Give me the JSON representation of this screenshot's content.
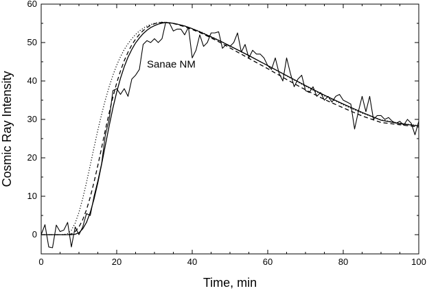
{
  "chart_data": {
    "type": "line",
    "title": "",
    "xlabel": "Time, min",
    "ylabel": "Cosmic Ray Intensity",
    "xlim": [
      0,
      100
    ],
    "ylim": [
      -5,
      60
    ],
    "xticks": [
      0,
      20,
      40,
      60,
      80,
      100
    ],
    "yticks": [
      0,
      10,
      20,
      30,
      40,
      50,
      60
    ],
    "grid": false,
    "legend": "none",
    "annotations": [
      {
        "text": "Sanae NM",
        "x": 28,
        "y": 43.5
      }
    ],
    "series": [
      {
        "style": "solid",
        "kind": "observed",
        "x": [
          0,
          1,
          2,
          3,
          4,
          5,
          6,
          7,
          8,
          9,
          10,
          11,
          12,
          13,
          14,
          15,
          16,
          17,
          18,
          19,
          20,
          21,
          22,
          23,
          24,
          25,
          26,
          27,
          28,
          29,
          30,
          31,
          32,
          33,
          34,
          35,
          36,
          37,
          38,
          39,
          40,
          41,
          42,
          43,
          44,
          45,
          46,
          47,
          48,
          49,
          50,
          51,
          52,
          53,
          54,
          55,
          56,
          57,
          58,
          59,
          60,
          61,
          62,
          63,
          64,
          65,
          66,
          67,
          68,
          69,
          70,
          71,
          72,
          73,
          74,
          75,
          76,
          77,
          78,
          79,
          80,
          81,
          82,
          83,
          84,
          85,
          86,
          87,
          88,
          89,
          90,
          91,
          92,
          93,
          94,
          95,
          96,
          97,
          98,
          99,
          100
        ],
        "y": [
          0,
          2.6,
          -3.2,
          -3.4,
          2.5,
          0.8,
          1.2,
          3.2,
          -3.2,
          2.0,
          0.0,
          2.0,
          5.5,
          5.0,
          10.0,
          14.0,
          18.5,
          26.0,
          30.0,
          37.5,
          38.0,
          36.5,
          38.0,
          36.0,
          40.5,
          41.5,
          43.0,
          49.5,
          50.5,
          50.0,
          51.0,
          50.0,
          51.0,
          55.3,
          55.0,
          53.0,
          53.5,
          53.5,
          52.0,
          54.0,
          46.0,
          48.0,
          52.0,
          49.0,
          50.0,
          52.5,
          52.5,
          52.8,
          48.5,
          49.5,
          49.0,
          50.0,
          52.5,
          47.5,
          49.5,
          46.0,
          48.0,
          47.0,
          47.0,
          46.0,
          44.0,
          43.0,
          46.0,
          42.0,
          40.0,
          46.0,
          42.0,
          38.5,
          40.5,
          41.5,
          37.5,
          37.0,
          38.5,
          36.0,
          37.0,
          35.0,
          36.0,
          34.5,
          36.0,
          36.5,
          35.0,
          34.5,
          34.0,
          27.5,
          32.0,
          36.0,
          32.0,
          36.0,
          30.0,
          31.0,
          31.0,
          30.0,
          30.5,
          29.5,
          29.0,
          29.5,
          28.5,
          30.0,
          29.0,
          26.0,
          29.5
        ]
      },
      {
        "style": "solid",
        "kind": "fit",
        "x": [
          0,
          5,
          8,
          9,
          10,
          11,
          12,
          13,
          14,
          15,
          16,
          17,
          18,
          19,
          20,
          21,
          22,
          23,
          24,
          25,
          26,
          27,
          28,
          29,
          30,
          31,
          32,
          33,
          34,
          35,
          36,
          38,
          40,
          42,
          44,
          46,
          48,
          50,
          55,
          60,
          65,
          70,
          75,
          80,
          85,
          90,
          95,
          100
        ],
        "y": [
          0,
          0,
          0,
          0.1,
          0.5,
          1.5,
          3.2,
          5.8,
          9.3,
          13.5,
          18.3,
          23.3,
          28.3,
          33.0,
          37.1,
          40.7,
          43.7,
          46.2,
          48.2,
          49.9,
          51.2,
          52.3,
          53.2,
          53.9,
          54.4,
          54.8,
          55.05,
          55.2,
          55.15,
          55.0,
          54.8,
          54.3,
          53.6,
          52.8,
          51.9,
          51.0,
          50.1,
          49.1,
          46.6,
          44.0,
          41.4,
          38.8,
          36.3,
          34.0,
          31.8,
          29.8,
          28.9,
          28.3
        ]
      },
      {
        "style": "dashed",
        "kind": "fit",
        "x": [
          0,
          7,
          8,
          9,
          10,
          11,
          12,
          13,
          14,
          15,
          16,
          17,
          18,
          19,
          20,
          21,
          22,
          23,
          24,
          25,
          26,
          27,
          28,
          29,
          30,
          31,
          32,
          33,
          34,
          35,
          36,
          38,
          40,
          42,
          44,
          46,
          48,
          50,
          55,
          60,
          65,
          70,
          75,
          80,
          85,
          90,
          95,
          100
        ],
        "y": [
          0,
          0,
          0.2,
          0.8,
          2.0,
          3.9,
          6.5,
          9.8,
          13.7,
          18.0,
          22.6,
          27.3,
          31.7,
          35.8,
          39.5,
          42.6,
          45.3,
          47.5,
          49.4,
          50.9,
          52.1,
          53.1,
          53.9,
          54.5,
          54.9,
          55.15,
          55.25,
          55.2,
          55.1,
          54.95,
          54.7,
          54.1,
          53.4,
          52.6,
          51.7,
          50.7,
          49.7,
          48.6,
          45.9,
          43.2,
          40.4,
          37.7,
          35.2,
          33.0,
          30.9,
          29.2,
          28.6,
          28.0
        ]
      },
      {
        "style": "dotted",
        "kind": "fit",
        "x": [
          0,
          6,
          7,
          8,
          9,
          10,
          11,
          12,
          13,
          14,
          15,
          16,
          17,
          18,
          19,
          20,
          21,
          22,
          23,
          24,
          25,
          26,
          27,
          28,
          29,
          30,
          31,
          32,
          33,
          34,
          35,
          36,
          38,
          40,
          42,
          44,
          46,
          48,
          50,
          55,
          60,
          65,
          70,
          75,
          80,
          85,
          90,
          95,
          100
        ],
        "y": [
          0,
          0,
          0.3,
          1.2,
          3.0,
          5.8,
          9.4,
          13.6,
          18.1,
          22.7,
          27.2,
          31.3,
          35.1,
          38.5,
          41.5,
          44.1,
          46.3,
          48.2,
          49.7,
          51.0,
          52.1,
          53.0,
          53.7,
          54.3,
          54.7,
          55.0,
          55.2,
          55.3,
          55.25,
          55.15,
          55.0,
          54.8,
          54.3,
          53.6,
          52.9,
          52.0,
          51.1,
          50.1,
          49.1,
          46.6,
          44.0,
          41.3,
          38.6,
          36.1,
          33.8,
          31.6,
          29.9,
          29.0,
          28.4
        ]
      }
    ]
  }
}
